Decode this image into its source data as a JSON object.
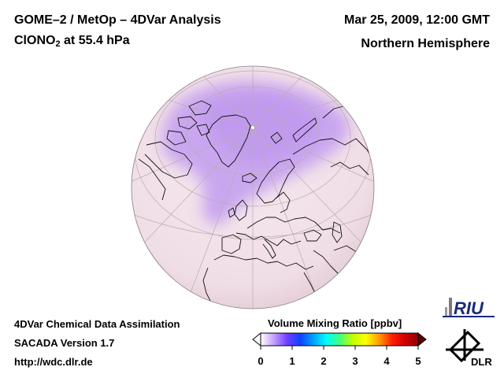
{
  "header": {
    "title_line1": "GOME–2 / MetOp – 4DVar Analysis",
    "species": "ClONO",
    "species_subscript": "2",
    "level": " at 55.4 hPa",
    "date": "Mar 25, 2009, 12:00 GMT",
    "region": "Northern Hemisphere"
  },
  "footer": {
    "line1": "4DVar Chemical Data Assimilation",
    "line2": "SACADA Version 1.7",
    "line3": "http://wdc.dlr.de"
  },
  "colorbar": {
    "title": "Volume Mixing Ratio [ppbv]",
    "ticks": [
      "0",
      "1",
      "2",
      "3",
      "4",
      "5"
    ],
    "min": 0,
    "max": 5,
    "colors": [
      "#ffffff",
      "#c6a0ff",
      "#7040ff",
      "#1040ff",
      "#00a0ff",
      "#00ffff",
      "#40ff80",
      "#c0ff00",
      "#ffff00",
      "#ffa000",
      "#ff2000",
      "#d00000",
      "#900000"
    ]
  },
  "map": {
    "projection": "orthographic",
    "hemisphere": "north",
    "background_color": "#f5e6ec",
    "enhanced_color": "#c9a4ee"
  },
  "logos": {
    "riu": "RIU",
    "dlr": "DLR"
  }
}
